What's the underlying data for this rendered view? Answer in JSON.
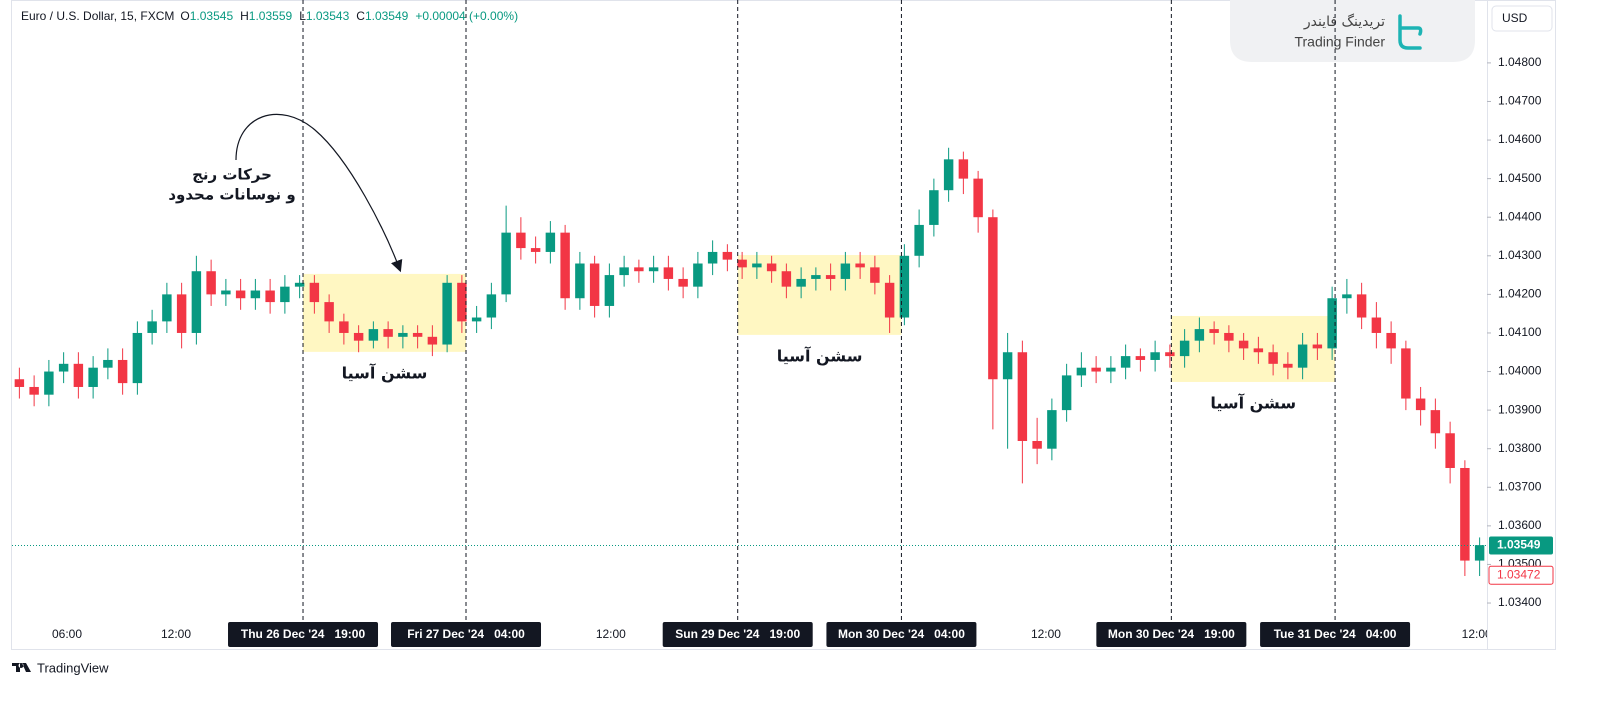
{
  "chart_data": {
    "type": "candlestick",
    "title": "Euro / U.S. Dollar, 15, FXCM",
    "ohlc_legend": [
      {
        "label": "O",
        "value": "1.03545"
      },
      {
        "label": "H",
        "value": "1.03559"
      },
      {
        "label": "L",
        "value": "1.03543"
      },
      {
        "label": "C",
        "value": "1.03549"
      }
    ],
    "change": "+0.00004 (+0.00%)",
    "up_color": "#089981",
    "down_color": "#f23645",
    "open": [
      1.0398,
      1.0396,
      1.0394,
      1.04,
      1.0402,
      1.0396,
      1.0401,
      1.0403,
      1.0397,
      1.041,
      1.0413,
      1.042,
      1.041,
      1.0426,
      1.042,
      1.0421,
      1.0419,
      1.0421,
      1.0418,
      1.0422,
      1.0423,
      1.0418,
      1.0413,
      1.041,
      1.0408,
      1.0411,
      1.0409,
      1.041,
      1.0409,
      1.0407,
      1.0423,
      1.0413,
      1.0414,
      1.042,
      1.0436,
      1.0432,
      1.0431,
      1.0436,
      1.0419,
      1.0428,
      1.0417,
      1.0425,
      1.0427,
      1.0426,
      1.0427,
      1.0424,
      1.0422,
      1.0428,
      1.0431,
      1.0429,
      1.0427,
      1.0428,
      1.0426,
      1.0422,
      1.0424,
      1.0425,
      1.0424,
      1.0428,
      1.0427,
      1.0423,
      1.0414,
      1.043,
      1.0438,
      1.0447,
      1.0455,
      1.045,
      1.044,
      1.0398,
      1.0405,
      1.0382,
      1.038,
      1.039,
      1.0399,
      1.0401,
      1.04,
      1.0401,
      1.0404,
      1.0403,
      1.0405,
      1.0404,
      1.0408,
      1.0411,
      1.041,
      1.0408,
      1.0406,
      1.0405,
      1.0402,
      1.0401,
      1.0407,
      1.0406,
      1.0419,
      1.042,
      1.0414,
      1.041,
      1.0406,
      1.0393,
      1.039,
      1.0384,
      1.0375,
      1.0351
    ],
    "high": [
      1.0401,
      1.0399,
      1.0403,
      1.0405,
      1.0405,
      1.0404,
      1.0406,
      1.0406,
      1.0413,
      1.0416,
      1.0423,
      1.0423,
      1.043,
      1.0429,
      1.0424,
      1.0424,
      1.0424,
      1.0424,
      1.0425,
      1.0425,
      1.0425,
      1.042,
      1.0415,
      1.0412,
      1.0413,
      1.0413,
      1.0412,
      1.0412,
      1.0412,
      1.0425,
      1.0425,
      1.0417,
      1.0423,
      1.0443,
      1.044,
      1.0435,
      1.0439,
      1.0438,
      1.0431,
      1.043,
      1.0428,
      1.043,
      1.0429,
      1.043,
      1.043,
      1.0427,
      1.0431,
      1.0434,
      1.0433,
      1.0431,
      1.0431,
      1.043,
      1.0428,
      1.0427,
      1.0427,
      1.0428,
      1.0431,
      1.0431,
      1.043,
      1.0425,
      1.0433,
      1.0442,
      1.045,
      1.0458,
      1.0457,
      1.0452,
      1.0442,
      1.041,
      1.0408,
      1.0388,
      1.0393,
      1.0402,
      1.0405,
      1.0404,
      1.0404,
      1.0407,
      1.0406,
      1.0408,
      1.0407,
      1.0411,
      1.0414,
      1.0413,
      1.0412,
      1.041,
      1.0409,
      1.0407,
      1.0405,
      1.041,
      1.041,
      1.0422,
      1.0424,
      1.0423,
      1.0418,
      1.0413,
      1.0408,
      1.0396,
      1.0393,
      1.0387,
      1.0377,
      1.0357
    ],
    "low": [
      1.0393,
      1.0391,
      1.0391,
      1.0397,
      1.0393,
      1.0393,
      1.0398,
      1.0394,
      1.0394,
      1.0407,
      1.041,
      1.0406,
      1.0407,
      1.0417,
      1.0417,
      1.0416,
      1.0416,
      1.0415,
      1.0415,
      1.0419,
      1.0415,
      1.041,
      1.0407,
      1.0405,
      1.0406,
      1.0406,
      1.0406,
      1.0406,
      1.0404,
      1.0405,
      1.041,
      1.041,
      1.0411,
      1.0418,
      1.0429,
      1.0428,
      1.0428,
      1.0416,
      1.0416,
      1.0414,
      1.0414,
      1.0422,
      1.0423,
      1.0423,
      1.0421,
      1.0419,
      1.0419,
      1.0425,
      1.0426,
      1.0424,
      1.0424,
      1.0423,
      1.0419,
      1.0419,
      1.0421,
      1.0421,
      1.0421,
      1.0424,
      1.042,
      1.041,
      1.0412,
      1.0427,
      1.0435,
      1.0444,
      1.0446,
      1.0436,
      1.0385,
      1.038,
      1.0371,
      1.0376,
      1.0377,
      1.0387,
      1.0396,
      1.0397,
      1.0397,
      1.0398,
      1.04,
      1.04,
      1.0401,
      1.0401,
      1.0405,
      1.0407,
      1.0405,
      1.0403,
      1.0402,
      1.0399,
      1.0398,
      1.0398,
      1.0403,
      1.0403,
      1.0415,
      1.0411,
      1.0406,
      1.0402,
      1.039,
      1.0386,
      1.038,
      1.0371,
      1.0347,
      1.0347
    ],
    "close": [
      1.0396,
      1.0394,
      1.04,
      1.0402,
      1.0396,
      1.0401,
      1.0403,
      1.0397,
      1.041,
      1.0413,
      1.042,
      1.041,
      1.0426,
      1.042,
      1.0421,
      1.0419,
      1.0421,
      1.0418,
      1.0422,
      1.0423,
      1.0418,
      1.0413,
      1.041,
      1.0408,
      1.0411,
      1.0409,
      1.041,
      1.0409,
      1.0407,
      1.0423,
      1.0413,
      1.0414,
      1.042,
      1.0436,
      1.0432,
      1.0431,
      1.0436,
      1.0419,
      1.0428,
      1.0417,
      1.0425,
      1.0427,
      1.0426,
      1.0427,
      1.0424,
      1.0422,
      1.0428,
      1.0431,
      1.0429,
      1.0427,
      1.0428,
      1.0426,
      1.0422,
      1.0424,
      1.0425,
      1.0424,
      1.0428,
      1.0427,
      1.0423,
      1.0414,
      1.043,
      1.0438,
      1.0447,
      1.0455,
      1.045,
      1.044,
      1.0398,
      1.0405,
      1.0382,
      1.038,
      1.039,
      1.0399,
      1.0401,
      1.04,
      1.0401,
      1.0404,
      1.0403,
      1.0405,
      1.0404,
      1.0408,
      1.0411,
      1.041,
      1.0408,
      1.0406,
      1.0405,
      1.0402,
      1.0401,
      1.0407,
      1.0406,
      1.0419,
      1.042,
      1.0414,
      1.041,
      1.0406,
      1.0393,
      1.039,
      1.0384,
      1.0375,
      1.0351,
      1.0355
    ],
    "ylim": [
      1.03356,
      1.04963
    ],
    "yticks": [
      {
        "value": 1.034,
        "label": "1.03400"
      },
      {
        "value": 1.035,
        "label": "1.03500"
      },
      {
        "value": 1.036,
        "label": "1.03600"
      },
      {
        "value": 1.037,
        "label": "1.03700"
      },
      {
        "value": 1.038,
        "label": "1.03800"
      },
      {
        "value": 1.039,
        "label": "1.03900"
      },
      {
        "value": 1.04,
        "label": "1.04000"
      },
      {
        "value": 1.041,
        "label": "1.04100"
      },
      {
        "value": 1.042,
        "label": "1.04200"
      },
      {
        "value": 1.043,
        "label": "1.04300"
      },
      {
        "value": 1.044,
        "label": "1.04400"
      },
      {
        "value": 1.045,
        "label": "1.04500"
      },
      {
        "value": 1.046,
        "label": "1.04600"
      },
      {
        "value": 1.047,
        "label": "1.04700"
      },
      {
        "value": 1.048,
        "label": "1.04800"
      }
    ],
    "xlim": [
      -0.5,
      99.5
    ],
    "xticks": [
      {
        "value": 3.23,
        "label": "06:00"
      },
      {
        "value": 10.62,
        "label": "12:00"
      },
      {
        "value": 40.1,
        "label": "12:00"
      },
      {
        "value": 69.6,
        "label": "12:00"
      },
      {
        "value": 98.8,
        "label": "12:00"
      }
    ],
    "sessions": [
      {
        "label": "سشن آسیا",
        "start": {
          "value": 19.23,
          "label": "Thu 26 Dec '24   19:00"
        },
        "end": {
          "value": 30.28,
          "label": "Fri 27 Dec '24   04:00"
        },
        "price_range": [
          1.04051,
          1.04253
        ]
      },
      {
        "label": "سشن آسیا",
        "start": {
          "value": 48.7,
          "label": "Sun 29 Dec '24   19:00"
        },
        "end": {
          "value": 59.8,
          "label": "Mon 30 Dec '24   04:00"
        },
        "price_range": [
          1.04095,
          1.04302
        ]
      },
      {
        "label": "سشن آسیا",
        "start": {
          "value": 78.1,
          "label": "Mon 30 Dec '24   19:00"
        },
        "end": {
          "value": 89.2,
          "label": "Tue 31 Dec '24   04:00"
        },
        "price_range": [
          1.03973,
          1.04144
        ]
      }
    ],
    "session_color": "#fff7c2",
    "annotation": {
      "lines": [
        "حرکات رنج",
        "و نوسانات محدود"
      ]
    },
    "last_price": {
      "value": 1.03549,
      "label": "1.03549"
    },
    "low_marker": {
      "value": 1.03472,
      "label": "1.03472"
    }
  },
  "currency": "USD",
  "logo": {
    "name_fa": "تریدینگ فایندر",
    "name_en": "Trading Finder"
  },
  "footer": "TradingView"
}
